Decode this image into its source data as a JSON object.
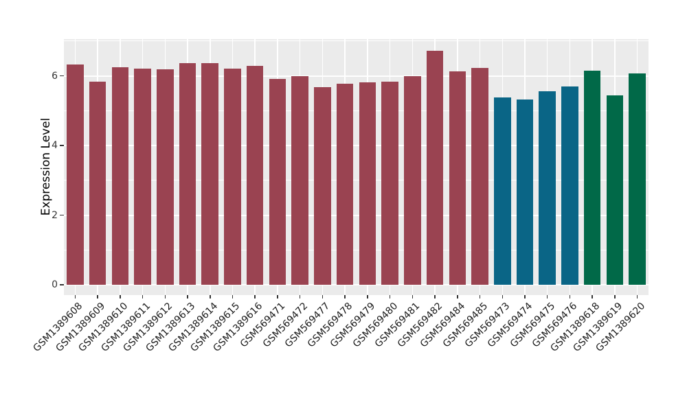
{
  "chart_data": {
    "type": "bar",
    "title": "",
    "xlabel": "",
    "ylabel": "Expression Level",
    "ylim": [
      0,
      7.05
    ],
    "yticks": [
      0,
      2,
      4,
      6
    ],
    "ytick_labels": [
      "0",
      "2",
      "4",
      "6"
    ],
    "minor_yticks": [
      1,
      3,
      5,
      7
    ],
    "grid": "on",
    "legend": "none",
    "plot_bg_color": "#EBEBEB",
    "grid_color": "#FFFFFF",
    "categories": [
      "GSM1389608",
      "GSM1389609",
      "GSM1389610",
      "GSM1389611",
      "GSM1389612",
      "GSM1389613",
      "GSM1389614",
      "GSM1389615",
      "GSM1389616",
      "GSM569471",
      "GSM569472",
      "GSM569477",
      "GSM569478",
      "GSM569479",
      "GSM569480",
      "GSM569481",
      "GSM569482",
      "GSM569484",
      "GSM569485",
      "GSM569473",
      "GSM569474",
      "GSM569475",
      "GSM569476",
      "GSM1389618",
      "GSM1389619",
      "GSM1389620"
    ],
    "values": [
      6.32,
      5.83,
      6.25,
      6.21,
      6.19,
      6.37,
      6.36,
      6.21,
      6.28,
      5.91,
      5.99,
      5.67,
      5.77,
      5.81,
      5.84,
      5.99,
      6.72,
      6.13,
      6.22,
      5.37,
      5.33,
      5.56,
      5.69,
      6.14,
      5.44,
      6.06
    ],
    "groups": [
      "maroon",
      "maroon",
      "maroon",
      "maroon",
      "maroon",
      "maroon",
      "maroon",
      "maroon",
      "maroon",
      "maroon",
      "maroon",
      "maroon",
      "maroon",
      "maroon",
      "maroon",
      "maroon",
      "maroon",
      "maroon",
      "maroon",
      "teal",
      "teal",
      "teal",
      "teal",
      "green",
      "green",
      "green"
    ],
    "group_colors": {
      "maroon": "#9A4351",
      "teal": "#0A6586",
      "green": "#016948"
    }
  }
}
